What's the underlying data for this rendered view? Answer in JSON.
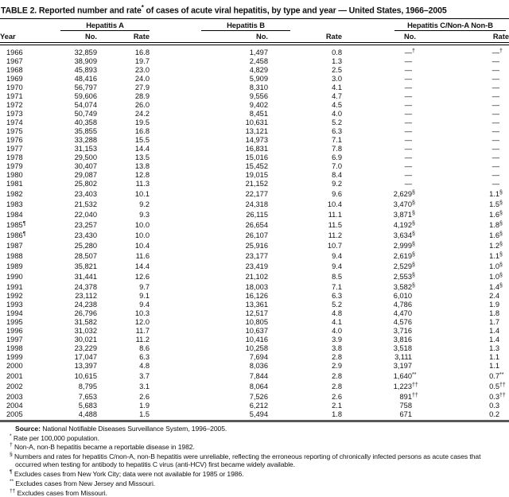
{
  "title": {
    "prefix": "TABLE 2. Reported number and rate",
    "sup": "*",
    "suffix": " of cases of acute viral hepatitis, by type and year — United States, 1966–2005"
  },
  "table": {
    "groups": [
      {
        "label": "Hepatitis A"
      },
      {
        "label": "Hepatitis B"
      },
      {
        "label": "Hepatitis C/Non-A Non-B"
      }
    ],
    "columns": {
      "year": "Year",
      "no": "No.",
      "rate": "Rate"
    },
    "rows": [
      [
        "1966",
        "32,859",
        "16.8",
        "1,497",
        "0.8",
        "—†",
        "—†"
      ],
      [
        "1967",
        "38,909",
        "19.7",
        "2,458",
        "1.3",
        "—",
        "—"
      ],
      [
        "1968",
        "45,893",
        "23.0",
        "4,829",
        "2.5",
        "—",
        "—"
      ],
      [
        "1969",
        "48,416",
        "24.0",
        "5,909",
        "3.0",
        "—",
        "—"
      ],
      [
        "1970",
        "56,797",
        "27.9",
        "8,310",
        "4.1",
        "—",
        "—"
      ],
      [
        "1971",
        "59,606",
        "28.9",
        "9,556",
        "4.7",
        "—",
        "—"
      ],
      [
        "1972",
        "54,074",
        "26.0",
        "9,402",
        "4.5",
        "—",
        "—"
      ],
      [
        "1973",
        "50,749",
        "24.2",
        "8,451",
        "4.0",
        "—",
        "—"
      ],
      [
        "1974",
        "40,358",
        "19.5",
        "10,631",
        "5.2",
        "—",
        "—"
      ],
      [
        "1975",
        "35,855",
        "16.8",
        "13,121",
        "6.3",
        "—",
        "—"
      ],
      [
        "1976",
        "33,288",
        "15.5",
        "14,973",
        "7.1",
        "—",
        "—"
      ],
      [
        "1977",
        "31,153",
        "14.4",
        "16,831",
        "7.8",
        "—",
        "—"
      ],
      [
        "1978",
        "29,500",
        "13.5",
        "15,016",
        "6.9",
        "—",
        "—"
      ],
      [
        "1979",
        "30,407",
        "13.8",
        "15,452",
        "7.0",
        "—",
        "—"
      ],
      [
        "1980",
        "29,087",
        "12.8",
        "19,015",
        "8.4",
        "—",
        "—"
      ],
      [
        "1981",
        "25,802",
        "11.3",
        "21,152",
        "9.2",
        "—",
        "—"
      ],
      [
        "1982",
        "23,403",
        "10.1",
        "22,177",
        "9.6",
        "2,629§",
        "1.1§"
      ],
      [
        "1983",
        "21,532",
        "9.2",
        "24,318",
        "10.4",
        "3,470§",
        "1.5§"
      ],
      [
        "1984",
        "22,040",
        "9.3",
        "26,115",
        "11.1",
        "3,871§",
        "1.6§"
      ],
      [
        "1985¶",
        "23,257",
        "10.0",
        "26,654",
        "11.5",
        "4,192§",
        "1.8§"
      ],
      [
        "1986¶",
        "23,430",
        "10.0",
        "26,107",
        "11.2",
        "3,634§",
        "1.6§"
      ],
      [
        "1987",
        "25,280",
        "10.4",
        "25,916",
        "10.7",
        "2,999§",
        "1.2§"
      ],
      [
        "1988",
        "28,507",
        "11.6",
        "23,177",
        "9.4",
        "2,619§",
        "1.1§"
      ],
      [
        "1989",
        "35,821",
        "14.4",
        "23,419",
        "9.4",
        "2,529§",
        "1.0§"
      ],
      [
        "1990",
        "31,441",
        "12.6",
        "21,102",
        "8.5",
        "2,553§",
        "1.0§"
      ],
      [
        "1991",
        "24,378",
        "9.7",
        "18,003",
        "7.1",
        "3,582§",
        "1.4§"
      ],
      [
        "1992",
        "23,112",
        "9.1",
        "16,126",
        "6.3",
        "6,010",
        "2.4"
      ],
      [
        "1993",
        "24,238",
        "9.4",
        "13,361",
        "5.2",
        "4,786",
        "1.9"
      ],
      [
        "1994",
        "26,796",
        "10.3",
        "12,517",
        "4.8",
        "4,470",
        "1.8"
      ],
      [
        "1995",
        "31,582",
        "12.0",
        "10,805",
        "4.1",
        "4,576",
        "1.7"
      ],
      [
        "1996",
        "31,032",
        "11.7",
        "10,637",
        "4.0",
        "3,716",
        "1.4"
      ],
      [
        "1997",
        "30,021",
        "11.2",
        "10,416",
        "3.9",
        "3,816",
        "1.4"
      ],
      [
        "1998",
        "23,229",
        "8.6",
        "10,258",
        "3.8",
        "3,518",
        "1.3"
      ],
      [
        "1999",
        "17,047",
        "6.3",
        "7,694",
        "2.8",
        "3,111",
        "1.1"
      ],
      [
        "2000",
        "13,397",
        "4.8",
        "8,036",
        "2.9",
        "3,197",
        "1.1"
      ],
      [
        "2001",
        "10,615",
        "3.7",
        "7,844",
        "2.8",
        "1,640**",
        "0.7**"
      ],
      [
        "2002",
        "8,795",
        "3.1",
        "8,064",
        "2.8",
        "1,223††",
        "0.5††"
      ],
      [
        "2003",
        "7,653",
        "2.6",
        "7,526",
        "2.6",
        "891††",
        "0.3††"
      ],
      [
        "2004",
        "5,683",
        "1.9",
        "6,212",
        "2.1",
        "758",
        "0.3"
      ],
      [
        "2005",
        "4,488",
        "1.5",
        "5,494",
        "1.8",
        "671",
        "0.2"
      ]
    ]
  },
  "footnotes": [
    {
      "marker": "",
      "bold": "Source:",
      "text": " National Notifiable Diseases Surveillance System, 1996–2005."
    },
    {
      "marker": "*",
      "text": "Rate per 100,000 population."
    },
    {
      "marker": "†",
      "text": "Non-A, non-B hepatitis became a reportable disease in 1982."
    },
    {
      "marker": "§",
      "text": "Numbers and rates for hepatitis C/non-A, non-B hepatitis were unreliable, reflecting the erroneous reporting of chronically infected persons as acute cases that occurred when testing for antibody to hepatitis C virus (anti-HCV) first became widely available."
    },
    {
      "marker": "¶",
      "text": "Excludes cases from New York City; data were not available for 1985 or 1986."
    },
    {
      "marker": "**",
      "text": "Excludes cases from New Jersey and Missouri."
    },
    {
      "marker": "††",
      "text": "Excludes cases from Missouri."
    }
  ],
  "colors": {
    "rule": "#000000",
    "bottom_bar": "#58585a",
    "text": "#111111"
  }
}
